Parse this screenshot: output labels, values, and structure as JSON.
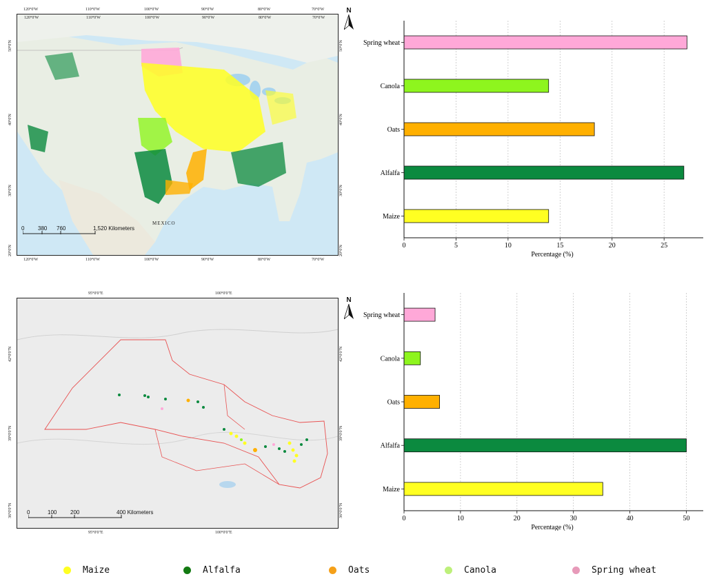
{
  "colors": {
    "maize": "#ffff22",
    "alfalfa": "#0b8a3f",
    "oats": "#ffb000",
    "canola": "#8ef51e",
    "spring_wheat": "#ffa8d8",
    "legend_alfalfa": "#137a12",
    "legend_oats": "#f5a019",
    "legend_canola": "#bdf07a",
    "legend_spring_wheat": "#e79ab9"
  },
  "map_top": {
    "north": "N",
    "lon_ticks": [
      "120°0'W",
      "110°0'W",
      "100°0'W",
      "90°0'W",
      "80°0'W",
      "70°0'W"
    ],
    "lat_ticks": [
      "50°0'N",
      "40°0'N",
      "30°0'N",
      "20°0'N"
    ],
    "scale_labels": [
      "0",
      "380",
      "760",
      "1,520 Kilometers"
    ],
    "place_label": "MEXICO"
  },
  "map_bottom": {
    "north": "N",
    "lon_ticks": [
      "95°0'0\"E",
      "100°0'0\"E"
    ],
    "lat_ticks": [
      "42°0'0\"N",
      "39°0'0\"N",
      "36°0'0\"N"
    ],
    "scale_labels": [
      "0",
      "100",
      "200",
      "400 Kilometers"
    ]
  },
  "chart_data": [
    {
      "type": "bar",
      "orientation": "horizontal",
      "categories": [
        "Spring wheat",
        "Canola",
        "Oats",
        "Alfalfa",
        "Maize"
      ],
      "values": [
        27.2,
        13.9,
        18.3,
        26.9,
        13.9
      ],
      "xlabel": "Percentage (%)",
      "ylabel": "",
      "xlim": [
        0,
        28.5
      ],
      "xticks": [
        0,
        5,
        10,
        15,
        20,
        25
      ],
      "grid": "vertical-dashed"
    },
    {
      "type": "bar",
      "orientation": "horizontal",
      "categories": [
        "Spring wheat",
        "Canola",
        "Oats",
        "Alfalfa",
        "Maize"
      ],
      "values": [
        5.5,
        2.9,
        6.3,
        50.0,
        35.2
      ],
      "xlabel": "Percentage (%)",
      "ylabel": "",
      "xlim": [
        0,
        52.5
      ],
      "xticks": [
        0,
        10,
        20,
        30,
        40,
        50
      ],
      "grid": "vertical-dashed"
    }
  ],
  "legend": {
    "items": [
      "Maize",
      "Alfalfa",
      "Oats",
      "Canola",
      "Spring wheat"
    ]
  }
}
